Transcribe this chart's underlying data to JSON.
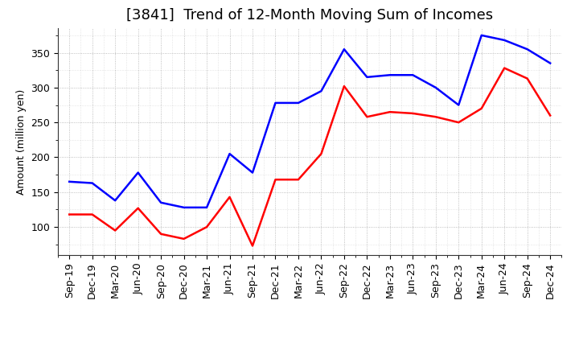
{
  "title": "[3841]  Trend of 12-Month Moving Sum of Incomes",
  "ylabel": "Amount (million yen)",
  "x_labels": [
    "Sep-19",
    "Dec-19",
    "Mar-20",
    "Jun-20",
    "Sep-20",
    "Dec-20",
    "Mar-21",
    "Jun-21",
    "Sep-21",
    "Dec-21",
    "Mar-22",
    "Jun-22",
    "Sep-22",
    "Dec-22",
    "Mar-23",
    "Jun-23",
    "Sep-23",
    "Dec-23",
    "Mar-24",
    "Jun-24",
    "Sep-24",
    "Dec-24"
  ],
  "ordinary_income": [
    165,
    163,
    138,
    178,
    135,
    128,
    128,
    205,
    178,
    278,
    278,
    295,
    355,
    315,
    318,
    318,
    300,
    275,
    375,
    368,
    355,
    335
  ],
  "net_income": [
    118,
    118,
    95,
    127,
    90,
    83,
    100,
    143,
    73,
    168,
    168,
    205,
    302,
    258,
    265,
    263,
    258,
    250,
    270,
    328,
    313,
    260
  ],
  "ordinary_color": "#0000ff",
  "net_color": "#ff0000",
  "ylim_min": 60,
  "ylim_max": 385,
  "yticks": [
    100,
    150,
    200,
    250,
    300,
    350
  ],
  "plot_bg_color": "#ffffff",
  "fig_bg_color": "#ffffff",
  "grid_color": "#999999",
  "title_fontsize": 13,
  "axis_label_fontsize": 9,
  "tick_fontsize": 9,
  "legend_fontsize": 10
}
